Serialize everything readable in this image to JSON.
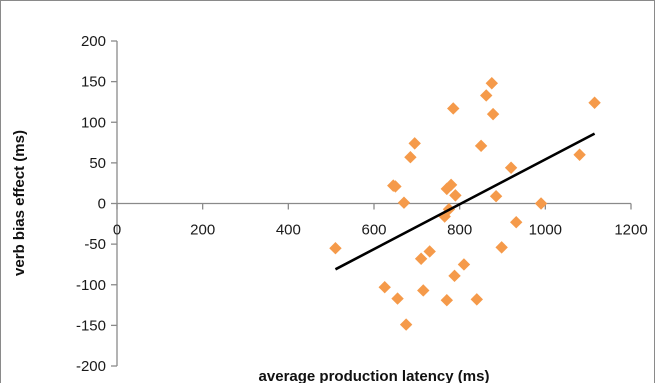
{
  "chart_data": {
    "type": "scatter",
    "title": "",
    "xlabel": "average production latency (ms)",
    "ylabel": "verb bias effect (ms)",
    "xlim": [
      0,
      1200
    ],
    "ylim": [
      -200,
      200
    ],
    "x_ticks": [
      0,
      200,
      400,
      600,
      800,
      1000,
      1200
    ],
    "y_ticks": [
      200,
      150,
      100,
      50,
      0,
      -50,
      -100,
      -150,
      -200
    ],
    "grid": false,
    "legend": "none",
    "marker": "diamond",
    "colors": {
      "points": "#f59a4a",
      "trendline": "#000000",
      "axis": "#8a8a8a"
    },
    "series": [
      {
        "points": [
          {
            "x": 510,
            "y": -55
          },
          {
            "x": 625,
            "y": -103
          },
          {
            "x": 645,
            "y": 22
          },
          {
            "x": 650,
            "y": 21
          },
          {
            "x": 655,
            "y": -117
          },
          {
            "x": 670,
            "y": 1
          },
          {
            "x": 675,
            "y": -149
          },
          {
            "x": 685,
            "y": 57
          },
          {
            "x": 695,
            "y": 74
          },
          {
            "x": 710,
            "y": -68
          },
          {
            "x": 715,
            "y": -107
          },
          {
            "x": 730,
            "y": -59
          },
          {
            "x": 765,
            "y": -16
          },
          {
            "x": 770,
            "y": 18
          },
          {
            "x": 770,
            "y": -119
          },
          {
            "x": 775,
            "y": -7
          },
          {
            "x": 780,
            "y": 23
          },
          {
            "x": 785,
            "y": 117
          },
          {
            "x": 788,
            "y": -89
          },
          {
            "x": 790,
            "y": 10
          },
          {
            "x": 810,
            "y": -75
          },
          {
            "x": 840,
            "y": -118
          },
          {
            "x": 850,
            "y": 71
          },
          {
            "x": 862,
            "y": 133
          },
          {
            "x": 875,
            "y": 148
          },
          {
            "x": 878,
            "y": 110
          },
          {
            "x": 885,
            "y": 9
          },
          {
            "x": 898,
            "y": -54
          },
          {
            "x": 920,
            "y": 44
          },
          {
            "x": 932,
            "y": -23
          },
          {
            "x": 990,
            "y": 0
          },
          {
            "x": 1080,
            "y": 60
          },
          {
            "x": 1115,
            "y": 124
          }
        ]
      }
    ],
    "trendline": {
      "x": [
        510,
        1115
      ],
      "y": [
        -81,
        86
      ]
    }
  }
}
